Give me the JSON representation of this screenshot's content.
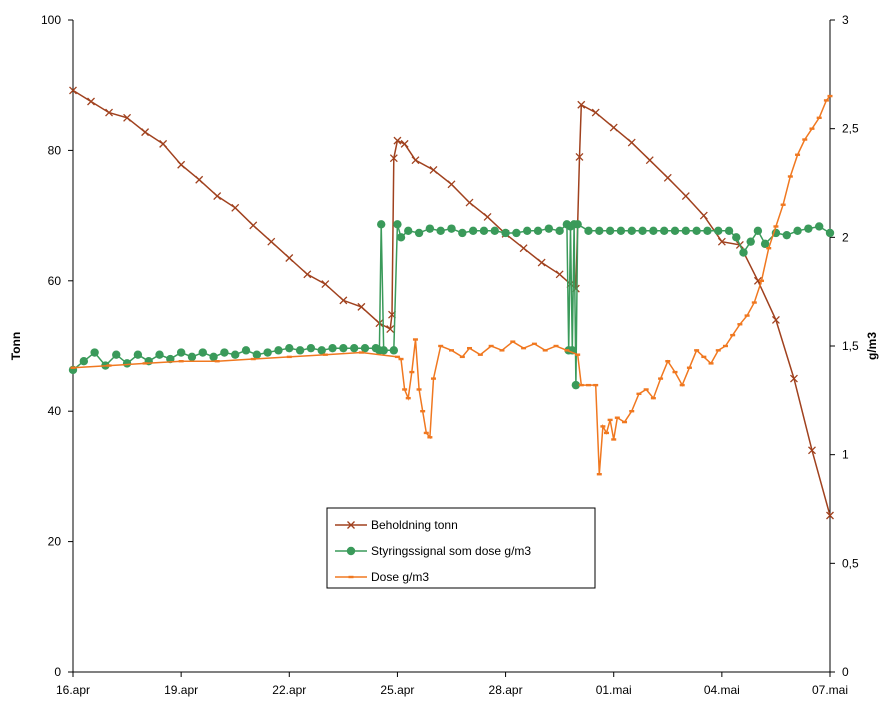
{
  "chart_data": {
    "type": "line",
    "xlabel": "",
    "y_left_label": "Tonn",
    "y_right_label": "g/m3",
    "x_range_days": [
      0,
      21
    ],
    "y_left_range": [
      0,
      100
    ],
    "y_right_range": [
      0,
      3
    ],
    "x_ticks": [
      {
        "day": 0,
        "label": "16.apr"
      },
      {
        "day": 3,
        "label": "19.apr"
      },
      {
        "day": 6,
        "label": "22.apr"
      },
      {
        "day": 9,
        "label": "25.apr"
      },
      {
        "day": 12,
        "label": "28.apr"
      },
      {
        "day": 15,
        "label": "01.mai"
      },
      {
        "day": 18,
        "label": "04.mai"
      },
      {
        "day": 21,
        "label": "07.mai"
      }
    ],
    "y_left_ticks": [
      {
        "value": 0,
        "label": "0"
      },
      {
        "value": 20,
        "label": "20"
      },
      {
        "value": 40,
        "label": "40"
      },
      {
        "value": 60,
        "label": "60"
      },
      {
        "value": 80,
        "label": "80"
      },
      {
        "value": 100,
        "label": "100"
      }
    ],
    "y_right_ticks": [
      {
        "value": 0,
        "label": "0"
      },
      {
        "value": 0.5,
        "label": "0,5"
      },
      {
        "value": 1,
        "label": "1"
      },
      {
        "value": 1.5,
        "label": "1,5"
      },
      {
        "value": 2,
        "label": "2"
      },
      {
        "value": 2.5,
        "label": "2,5"
      },
      {
        "value": 3,
        "label": "3"
      }
    ],
    "legend_position": "center-bottom",
    "series": [
      {
        "name": "Beholdning tonn",
        "axis": "left",
        "color": "#a0411e",
        "marker": "x",
        "points": [
          [
            0,
            89.2
          ],
          [
            0.5,
            87.5
          ],
          [
            1.0,
            85.8
          ],
          [
            1.5,
            85.0
          ],
          [
            2.0,
            82.8
          ],
          [
            2.5,
            81.0
          ],
          [
            3.0,
            77.8
          ],
          [
            3.5,
            75.5
          ],
          [
            4.0,
            73.0
          ],
          [
            4.5,
            71.2
          ],
          [
            5.0,
            68.5
          ],
          [
            5.5,
            66.0
          ],
          [
            6.0,
            63.5
          ],
          [
            6.5,
            61.0
          ],
          [
            7.0,
            59.5
          ],
          [
            7.5,
            57.0
          ],
          [
            8.0,
            56.0
          ],
          [
            8.5,
            53.5
          ],
          [
            8.8,
            52.6
          ],
          [
            8.85,
            54.8
          ],
          [
            8.9,
            78.8
          ],
          [
            9.0,
            81.5
          ],
          [
            9.2,
            81.0
          ],
          [
            9.5,
            78.5
          ],
          [
            10.0,
            77.0
          ],
          [
            10.5,
            74.8
          ],
          [
            11.0,
            72.0
          ],
          [
            11.5,
            69.8
          ],
          [
            12.0,
            67.2
          ],
          [
            12.5,
            65.0
          ],
          [
            13.0,
            62.8
          ],
          [
            13.5,
            61.0
          ],
          [
            13.8,
            59.5
          ],
          [
            13.95,
            58.8
          ],
          [
            14.05,
            79.0
          ],
          [
            14.1,
            87.0
          ],
          [
            14.5,
            85.8
          ],
          [
            15.0,
            83.5
          ],
          [
            15.5,
            81.2
          ],
          [
            16.0,
            78.5
          ],
          [
            16.5,
            75.8
          ],
          [
            17.0,
            73.0
          ],
          [
            17.5,
            70.0
          ],
          [
            18.0,
            66.0
          ],
          [
            18.5,
            65.5
          ],
          [
            19.0,
            60.0
          ],
          [
            19.5,
            54.0
          ],
          [
            20.0,
            45.0
          ],
          [
            20.5,
            34.0
          ],
          [
            21.0,
            24.0
          ]
        ]
      },
      {
        "name": "Styringssignal som dose g/m3",
        "axis": "right",
        "color": "#3a9a5a",
        "marker": "circle",
        "points": [
          [
            0,
            1.39
          ],
          [
            0.3,
            1.43
          ],
          [
            0.6,
            1.47
          ],
          [
            0.9,
            1.41
          ],
          [
            1.2,
            1.46
          ],
          [
            1.5,
            1.42
          ],
          [
            1.8,
            1.46
          ],
          [
            2.1,
            1.43
          ],
          [
            2.4,
            1.46
          ],
          [
            2.7,
            1.44
          ],
          [
            3.0,
            1.47
          ],
          [
            3.3,
            1.45
          ],
          [
            3.6,
            1.47
          ],
          [
            3.9,
            1.45
          ],
          [
            4.2,
            1.47
          ],
          [
            4.5,
            1.46
          ],
          [
            4.8,
            1.48
          ],
          [
            5.1,
            1.46
          ],
          [
            5.4,
            1.47
          ],
          [
            5.7,
            1.48
          ],
          [
            6.0,
            1.49
          ],
          [
            6.3,
            1.48
          ],
          [
            6.6,
            1.49
          ],
          [
            6.9,
            1.48
          ],
          [
            7.2,
            1.49
          ],
          [
            7.5,
            1.49
          ],
          [
            7.8,
            1.49
          ],
          [
            8.1,
            1.49
          ],
          [
            8.4,
            1.49
          ],
          [
            8.5,
            1.48
          ],
          [
            8.55,
            2.06
          ],
          [
            8.62,
            1.48
          ],
          [
            8.9,
            1.48
          ],
          [
            9.0,
            2.06
          ],
          [
            9.1,
            2.0
          ],
          [
            9.3,
            2.03
          ],
          [
            9.6,
            2.02
          ],
          [
            9.9,
            2.04
          ],
          [
            10.2,
            2.03
          ],
          [
            10.5,
            2.04
          ],
          [
            10.8,
            2.02
          ],
          [
            11.1,
            2.03
          ],
          [
            11.4,
            2.03
          ],
          [
            11.7,
            2.03
          ],
          [
            12.0,
            2.02
          ],
          [
            12.3,
            2.02
          ],
          [
            12.6,
            2.03
          ],
          [
            12.9,
            2.03
          ],
          [
            13.2,
            2.04
          ],
          [
            13.5,
            2.03
          ],
          [
            13.7,
            2.06
          ],
          [
            13.75,
            1.48
          ],
          [
            13.8,
            2.05
          ],
          [
            13.85,
            1.48
          ],
          [
            13.9,
            2.06
          ],
          [
            13.95,
            1.32
          ],
          [
            14.0,
            2.06
          ],
          [
            14.3,
            2.03
          ],
          [
            14.6,
            2.03
          ],
          [
            14.9,
            2.03
          ],
          [
            15.2,
            2.03
          ],
          [
            15.5,
            2.03
          ],
          [
            15.8,
            2.03
          ],
          [
            16.1,
            2.03
          ],
          [
            16.4,
            2.03
          ],
          [
            16.7,
            2.03
          ],
          [
            17.0,
            2.03
          ],
          [
            17.3,
            2.03
          ],
          [
            17.6,
            2.03
          ],
          [
            17.9,
            2.03
          ],
          [
            18.2,
            2.03
          ],
          [
            18.4,
            2.0
          ],
          [
            18.6,
            1.93
          ],
          [
            18.8,
            1.98
          ],
          [
            19.0,
            2.03
          ],
          [
            19.2,
            1.97
          ],
          [
            19.5,
            2.02
          ],
          [
            19.8,
            2.01
          ],
          [
            20.1,
            2.03
          ],
          [
            20.4,
            2.04
          ],
          [
            20.7,
            2.05
          ],
          [
            21.0,
            2.02
          ]
        ]
      },
      {
        "name": "Dose g/m3",
        "axis": "right",
        "color": "#f07820",
        "marker": "dash",
        "points": [
          [
            0,
            1.4
          ],
          [
            1,
            1.41
          ],
          [
            2,
            1.42
          ],
          [
            3,
            1.43
          ],
          [
            4,
            1.43
          ],
          [
            5,
            1.44
          ],
          [
            6,
            1.45
          ],
          [
            7,
            1.46
          ],
          [
            8,
            1.47
          ],
          [
            9,
            1.45
          ],
          [
            9.1,
            1.44
          ],
          [
            9.2,
            1.3
          ],
          [
            9.3,
            1.26
          ],
          [
            9.4,
            1.38
          ],
          [
            9.5,
            1.53
          ],
          [
            9.6,
            1.3
          ],
          [
            9.7,
            1.2
          ],
          [
            9.8,
            1.1
          ],
          [
            9.9,
            1.08
          ],
          [
            10.0,
            1.35
          ],
          [
            10.2,
            1.5
          ],
          [
            10.5,
            1.48
          ],
          [
            10.8,
            1.45
          ],
          [
            11.0,
            1.49
          ],
          [
            11.3,
            1.46
          ],
          [
            11.6,
            1.5
          ],
          [
            11.9,
            1.48
          ],
          [
            12.2,
            1.52
          ],
          [
            12.5,
            1.49
          ],
          [
            12.8,
            1.51
          ],
          [
            13.1,
            1.48
          ],
          [
            13.4,
            1.5
          ],
          [
            13.7,
            1.48
          ],
          [
            14.0,
            1.46
          ],
          [
            14.1,
            1.32
          ],
          [
            14.3,
            1.32
          ],
          [
            14.5,
            1.32
          ],
          [
            14.6,
            0.91
          ],
          [
            14.7,
            1.13
          ],
          [
            14.8,
            1.1
          ],
          [
            14.9,
            1.16
          ],
          [
            15.0,
            1.07
          ],
          [
            15.1,
            1.17
          ],
          [
            15.3,
            1.15
          ],
          [
            15.5,
            1.2
          ],
          [
            15.7,
            1.28
          ],
          [
            15.9,
            1.3
          ],
          [
            16.1,
            1.26
          ],
          [
            16.3,
            1.35
          ],
          [
            16.5,
            1.43
          ],
          [
            16.7,
            1.38
          ],
          [
            16.9,
            1.32
          ],
          [
            17.1,
            1.4
          ],
          [
            17.3,
            1.48
          ],
          [
            17.5,
            1.45
          ],
          [
            17.7,
            1.42
          ],
          [
            17.9,
            1.48
          ],
          [
            18.1,
            1.5
          ],
          [
            18.3,
            1.55
          ],
          [
            18.5,
            1.6
          ],
          [
            18.7,
            1.64
          ],
          [
            18.9,
            1.7
          ],
          [
            19.1,
            1.8
          ],
          [
            19.3,
            1.95
          ],
          [
            19.5,
            2.05
          ],
          [
            19.7,
            2.15
          ],
          [
            19.9,
            2.28
          ],
          [
            20.1,
            2.38
          ],
          [
            20.3,
            2.45
          ],
          [
            20.5,
            2.5
          ],
          [
            20.7,
            2.55
          ],
          [
            20.9,
            2.63
          ],
          [
            21.0,
            2.65
          ]
        ]
      }
    ]
  }
}
